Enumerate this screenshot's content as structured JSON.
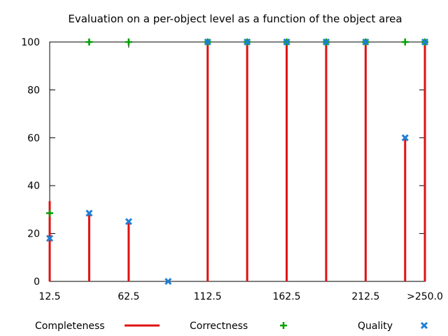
{
  "chart_data": {
    "type": "bar",
    "title": "Evaluation on a per-object level as a function of the object area",
    "xlabel": "",
    "ylabel": "",
    "ylim": [
      0,
      100
    ],
    "xlim": [
      12.5,
      250
    ],
    "y_ticks": [
      "0",
      "20",
      "40",
      "60",
      "80",
      "100"
    ],
    "x_ticks": [
      {
        "x": 12.5,
        "label": "12.5"
      },
      {
        "x": 62.5,
        "label": "62.5"
      },
      {
        "x": 112.5,
        "label": "112.5"
      },
      {
        "x": 162.5,
        "label": "162.5"
      },
      {
        "x": 212.5,
        "label": "212.5"
      },
      {
        "x": 250,
        "label": ">250.0"
      }
    ],
    "x": [
      12.5,
      37.5,
      62.5,
      87.5,
      112.5,
      137.5,
      162.5,
      187.5,
      212.5,
      237.5,
      250
    ],
    "series": [
      {
        "name": "Completeness",
        "style": "impulses",
        "color": "#e01010",
        "values": [
          33.5,
          28.5,
          25,
          0,
          100,
          100,
          100,
          100,
          100,
          60,
          100
        ]
      },
      {
        "name": "Correctness",
        "style": "plus",
        "color": "#00a000",
        "values": [
          28.5,
          100,
          100,
          null,
          100,
          100,
          100,
          100,
          100,
          100,
          100
        ]
      },
      {
        "name": "Quality",
        "style": "cross",
        "color": "#1e7fd6",
        "values": [
          18,
          28.5,
          25,
          0,
          100,
          100,
          100,
          100,
          100,
          60,
          100
        ]
      }
    ],
    "legend_placement": "bottom",
    "grid": false
  }
}
